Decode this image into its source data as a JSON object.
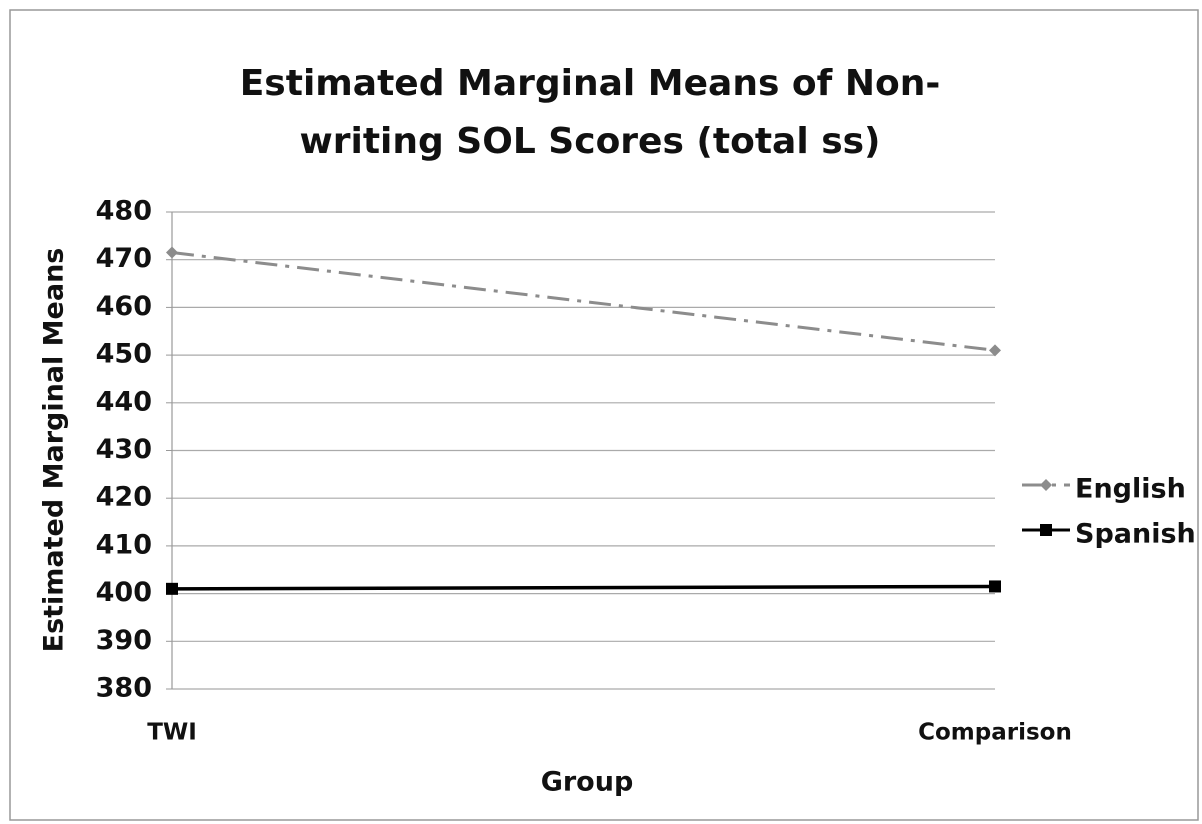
{
  "chart_data": {
    "type": "line",
    "title": "Estimated Marginal Means of Non-writing SOL Scores (total ss)",
    "x_label": "Group",
    "y_label": "Estimated Marginal Means",
    "categories": [
      "TWI",
      "Comparison"
    ],
    "series": [
      {
        "name": "English",
        "color": "#8c8c8c",
        "dash": "dash-dot",
        "marker": "diamond",
        "values": [
          471.5,
          451
        ]
      },
      {
        "name": "Spanish",
        "color": "#000000",
        "dash": "solid",
        "marker": "square",
        "values": [
          401,
          401.5
        ]
      }
    ],
    "ylim": [
      380,
      480
    ],
    "yticks": [
      380,
      390,
      400,
      410,
      420,
      430,
      440,
      450,
      460,
      470,
      480
    ],
    "grid": true,
    "legend": "right"
  }
}
